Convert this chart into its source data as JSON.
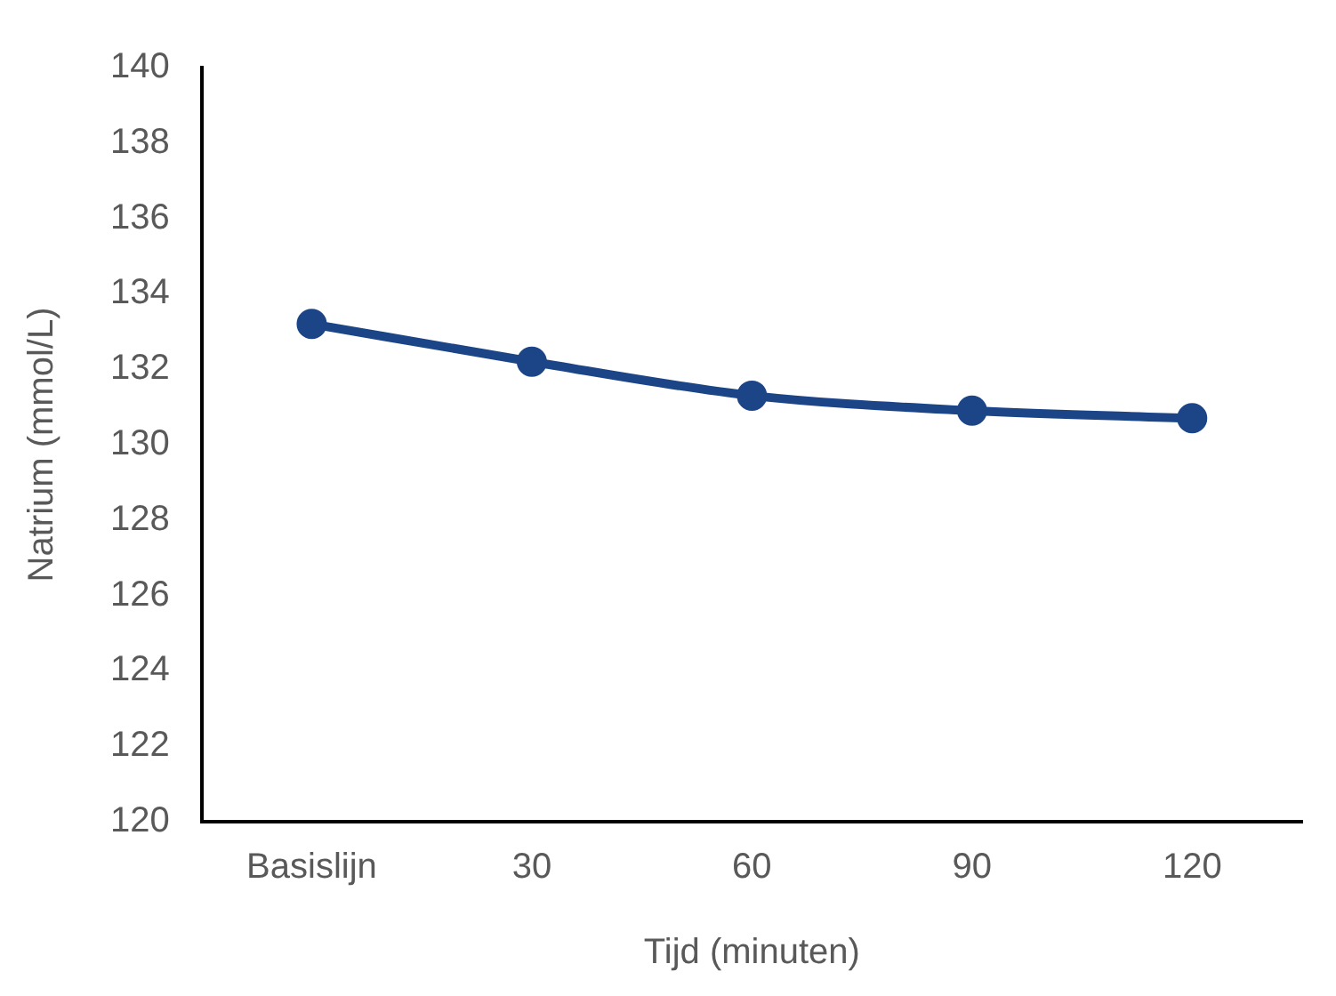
{
  "chart_data": {
    "type": "line",
    "xlabel": "Tijd (minuten)",
    "ylabel": "Natrium (mmol/L)",
    "categories": [
      "Basislijn",
      "30",
      "60",
      "90",
      "120"
    ],
    "series": [
      {
        "color": "#1c4587",
        "values": [
          133.2,
          132.2,
          131.3,
          130.9,
          130.7
        ]
      }
    ],
    "ylim": [
      120,
      140
    ],
    "yticks": [
      120,
      122,
      124,
      126,
      128,
      130,
      132,
      134,
      136,
      138,
      140
    ],
    "grid": false,
    "legend": false,
    "marker": "circle",
    "line_style": "solid"
  }
}
